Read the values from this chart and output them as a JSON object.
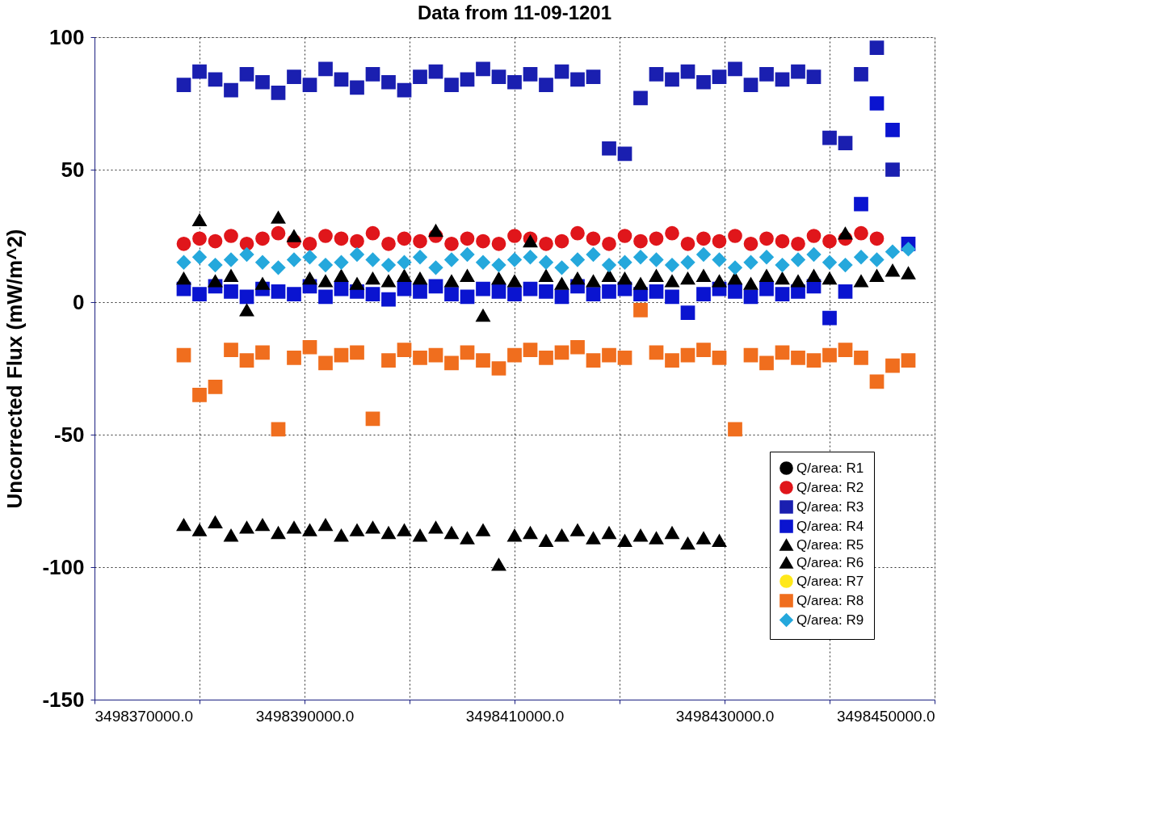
{
  "chart_data": {
    "type": "scatter",
    "title": "Data from 11-09-1201",
    "ylabel": "Uncorrected Flux (mW/m^2)",
    "xlim": [
      3498370000,
      3498450000
    ],
    "ylim": [
      -150,
      100
    ],
    "xticks": [
      {
        "value": 3498370000,
        "label": "3498370000.0"
      },
      {
        "value": 3498380000,
        "label": null
      },
      {
        "value": 3498390000,
        "label": "3498390000.0"
      },
      {
        "value": 3498400000,
        "label": null
      },
      {
        "value": 3498410000,
        "label": "3498410000.0"
      },
      {
        "value": 3498420000,
        "label": null
      },
      {
        "value": 3498430000,
        "label": "3498430000.0"
      },
      {
        "value": 3498440000,
        "label": null
      },
      {
        "value": 3498450000,
        "label": "3498450000.0"
      }
    ],
    "yticks": [
      -150,
      -100,
      -50,
      0,
      50,
      100
    ],
    "grid": true,
    "legend": "bottom right",
    "x": [
      3498378500,
      3498380000,
      3498381500,
      3498383000,
      3498384500,
      3498386000,
      3498387500,
      3498389000,
      3498390500,
      3498392000,
      3498393500,
      3498395000,
      3498396500,
      3498398000,
      3498399500,
      3498401000,
      3498402500,
      3498404000,
      3498405500,
      3498407000,
      3498408500,
      3498410000,
      3498411500,
      3498413000,
      3498414500,
      3498416000,
      3498417500,
      3498419000,
      3498420500,
      3498422000,
      3498423500,
      3498425000,
      3498426500,
      3498428000,
      3498429500,
      3498431000,
      3498432500,
      3498434000,
      3498435500,
      3498437000,
      3498438500,
      3498440000,
      3498441500,
      3498443000,
      3498444500,
      3498446000,
      3498447500
    ],
    "series": [
      {
        "name": "Q/area: R1",
        "color": "#000000",
        "marker": "circle",
        "values": [
          null,
          null,
          null,
          null,
          null,
          null,
          null,
          null,
          null,
          null,
          null,
          null,
          null,
          null,
          null,
          null,
          null,
          null,
          null,
          null,
          null,
          null,
          null,
          null,
          null,
          null,
          null,
          null,
          null,
          null,
          null,
          null,
          null,
          null,
          null,
          null,
          null,
          null,
          null,
          null,
          null,
          null,
          null,
          null,
          null,
          null,
          null
        ]
      },
      {
        "name": "Q/area: R2",
        "color": "#e0161b",
        "marker": "circle",
        "values": [
          22,
          24,
          23,
          25,
          22,
          24,
          26,
          23,
          22,
          25,
          24,
          23,
          26,
          22,
          24,
          23,
          25,
          22,
          24,
          23,
          22,
          25,
          24,
          22,
          23,
          26,
          24,
          22,
          25,
          23,
          24,
          26,
          22,
          24,
          23,
          25,
          22,
          24,
          23,
          22,
          25,
          23,
          24,
          26,
          24,
          null,
          null
        ]
      },
      {
        "name": "Q/area: R3",
        "color": "#1a1fb0",
        "marker": "square",
        "values": [
          82,
          87,
          84,
          80,
          86,
          83,
          79,
          85,
          82,
          88,
          84,
          81,
          86,
          83,
          80,
          85,
          87,
          82,
          84,
          88,
          85,
          83,
          86,
          82,
          87,
          84,
          85,
          58,
          56,
          77,
          86,
          84,
          87,
          83,
          85,
          88,
          82,
          86,
          84,
          87,
          85,
          62,
          60,
          86,
          96,
          50,
          null
        ]
      },
      {
        "name": "Q/area: R4",
        "color": "#0a14d0",
        "marker": "square",
        "values": [
          5,
          3,
          6,
          4,
          2,
          5,
          4,
          3,
          6,
          2,
          5,
          4,
          3,
          1,
          5,
          4,
          6,
          3,
          2,
          5,
          4,
          3,
          5,
          4,
          2,
          6,
          3,
          4,
          5,
          3,
          4,
          2,
          -4,
          3,
          5,
          4,
          2,
          5,
          3,
          4,
          6,
          -6,
          4,
          37,
          75,
          65,
          22
        ]
      },
      {
        "name": "Q/area: R5",
        "color": "#000000",
        "marker": "triangle",
        "values": [
          -84,
          -86,
          -83,
          -88,
          -85,
          -84,
          -87,
          -85,
          -86,
          -84,
          -88,
          -86,
          -85,
          -87,
          -86,
          -88,
          -85,
          -87,
          -89,
          -86,
          -99,
          -88,
          -87,
          -90,
          -88,
          -86,
          -89,
          -87,
          -90,
          -88,
          -89,
          -87,
          -91,
          -89,
          -90,
          null,
          null,
          null,
          null,
          null,
          null,
          null,
          null,
          null,
          null,
          null,
          null
        ]
      },
      {
        "name": "Q/area: R6",
        "color": "#000000",
        "marker": "triangle",
        "values": [
          9,
          31,
          8,
          10,
          -3,
          7,
          32,
          25,
          9,
          8,
          10,
          7,
          9,
          8,
          10,
          9,
          27,
          8,
          10,
          -5,
          9,
          8,
          23,
          10,
          7,
          9,
          8,
          10,
          9,
          7,
          10,
          8,
          9,
          10,
          8,
          9,
          7,
          10,
          9,
          8,
          10,
          9,
          26,
          8,
          10,
          12,
          11
        ]
      },
      {
        "name": "Q/area: R7",
        "color": "#ffe81a",
        "marker": "circle",
        "values": [
          null,
          null,
          null,
          null,
          null,
          null,
          null,
          null,
          null,
          null,
          null,
          null,
          null,
          null,
          null,
          null,
          null,
          null,
          null,
          null,
          null,
          null,
          null,
          null,
          null,
          null,
          null,
          null,
          null,
          null,
          null,
          null,
          null,
          null,
          null,
          null,
          null,
          null,
          null,
          null,
          null,
          null,
          null,
          null,
          null,
          null,
          null
        ]
      },
      {
        "name": "Q/area: R8",
        "color": "#f06e1e",
        "marker": "square",
        "values": [
          -20,
          -35,
          -32,
          -18,
          -22,
          -19,
          -48,
          -21,
          -17,
          -23,
          -20,
          -19,
          -44,
          -22,
          -18,
          -21,
          -20,
          -23,
          -19,
          -22,
          -25,
          -20,
          -18,
          -21,
          -19,
          -17,
          -22,
          -20,
          -21,
          -3,
          -19,
          -22,
          -20,
          -18,
          -21,
          -48,
          -20,
          -23,
          -19,
          -21,
          -22,
          -20,
          -18,
          -21,
          -30,
          -24,
          -22
        ]
      },
      {
        "name": "Q/area: R9",
        "color": "#25a8dc",
        "marker": "diamond",
        "values": [
          15,
          17,
          14,
          16,
          18,
          15,
          13,
          16,
          17,
          14,
          15,
          18,
          16,
          14,
          15,
          17,
          13,
          16,
          18,
          15,
          14,
          16,
          17,
          15,
          13,
          16,
          18,
          14,
          15,
          17,
          16,
          14,
          15,
          18,
          16,
          13,
          15,
          17,
          14,
          16,
          18,
          15,
          14,
          17,
          16,
          19,
          20
        ]
      }
    ]
  }
}
